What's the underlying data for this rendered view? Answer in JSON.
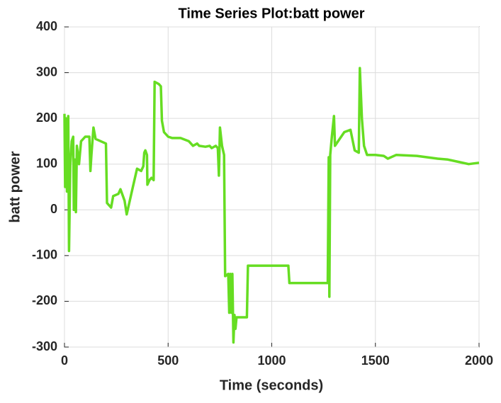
{
  "chart_data": {
    "type": "line",
    "title": "Time Series Plot:batt power",
    "xlabel": "Time (seconds)",
    "ylabel": "batt power",
    "xlim": [
      0,
      2000
    ],
    "xticks": [
      0,
      500,
      1000,
      1500,
      2000
    ],
    "ylim": [
      -300,
      400
    ],
    "yticks": [
      -300,
      -200,
      -100,
      0,
      100,
      200,
      300,
      400
    ],
    "grid": true,
    "series": [
      {
        "color": "#66dd22",
        "x": [
          0,
          3,
          8,
          12,
          18,
          22,
          28,
          35,
          42,
          45,
          50,
          55,
          60,
          70,
          80,
          100,
          120,
          125,
          130,
          140,
          150,
          200,
          205,
          215,
          225,
          235,
          260,
          270,
          290,
          300,
          310,
          330,
          350,
          370,
          380,
          385,
          390,
          398,
          400,
          410,
          420,
          430,
          435,
          455,
          465,
          470,
          480,
          500,
          520,
          560,
          600,
          620,
          640,
          650,
          680,
          700,
          710,
          730,
          740,
          745,
          750,
          760,
          770,
          775,
          790,
          795,
          800,
          805,
          810,
          815,
          820,
          825,
          830,
          880,
          885,
          1000,
          1080,
          1085,
          1200,
          1270,
          1275,
          1278,
          1282,
          1290,
          1300,
          1305,
          1320,
          1350,
          1380,
          1400,
          1420,
          1425,
          1435,
          1445,
          1460,
          1500,
          1540,
          1560,
          1600,
          1700,
          1800,
          1850,
          1900,
          1950,
          2000
        ],
        "values": [
          210,
          50,
          200,
          40,
          205,
          -90,
          100,
          150,
          160,
          0,
          110,
          -5,
          140,
          100,
          150,
          160,
          160,
          85,
          120,
          180,
          155,
          145,
          15,
          10,
          5,
          30,
          35,
          45,
          20,
          -10,
          10,
          50,
          90,
          85,
          95,
          125,
          130,
          120,
          55,
          65,
          70,
          65,
          280,
          275,
          270,
          195,
          170,
          160,
          157,
          157,
          150,
          140,
          145,
          140,
          138,
          140,
          135,
          140,
          135,
          75,
          180,
          140,
          120,
          -145,
          -140,
          -225,
          -140,
          -225,
          -140,
          -290,
          -230,
          -260,
          -235,
          -235,
          -122,
          -122,
          -122,
          -160,
          -160,
          -160,
          115,
          -190,
          120,
          160,
          205,
          140,
          150,
          170,
          175,
          130,
          125,
          310,
          200,
          140,
          120,
          120,
          118,
          112,
          120,
          118,
          112,
          110,
          105,
          100,
          103
        ]
      }
    ]
  }
}
